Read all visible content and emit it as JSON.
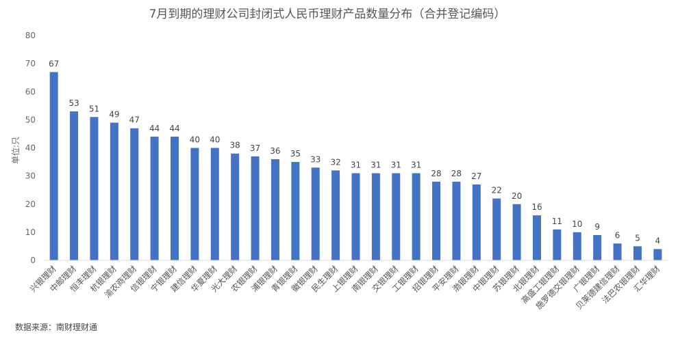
{
  "chart_data": {
    "type": "bar",
    "title": "7月到期的理财公司封闭式人民币理财产品数量分布（合并登记编码）",
    "ylabel": "单位:只",
    "xlabel": "",
    "ylim": [
      0,
      80
    ],
    "yticks": [
      0,
      10,
      20,
      30,
      40,
      50,
      60,
      70,
      80
    ],
    "grid": false,
    "legend": "none",
    "bar_color": "#4472c4",
    "categories": [
      "兴银理财",
      "中邮理财",
      "恒丰理财",
      "杭银理财",
      "渝农商理财",
      "信银理财",
      "宁银理财",
      "建信理财",
      "华夏理财",
      "光大理财",
      "农银理财",
      "浦银理财",
      "青银理财",
      "徽银理财",
      "民生理财",
      "上银理财",
      "南银理财",
      "交银理财",
      "工银理财",
      "招银理财",
      "平安理财",
      "渤银理财",
      "中银理财",
      "苏银理财",
      "北银理财",
      "高盛工银理财",
      "施罗德交银理财",
      "广银理财",
      "贝莱德建信理财",
      "法巴农银理财",
      "汇华理财"
    ],
    "values": [
      67,
      53,
      51,
      49,
      47,
      44,
      44,
      40,
      40,
      38,
      37,
      36,
      35,
      33,
      32,
      31,
      31,
      31,
      31,
      28,
      28,
      27,
      22,
      20,
      16,
      11,
      10,
      9,
      6,
      5,
      4
    ]
  },
  "source": "数据来源：南财理财通"
}
